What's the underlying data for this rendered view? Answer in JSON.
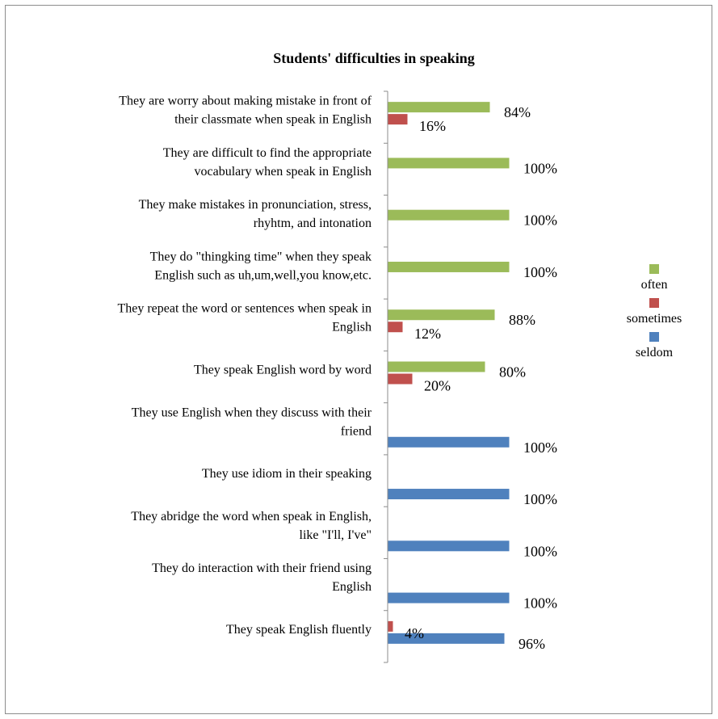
{
  "chart_data": {
    "type": "bar",
    "orientation": "horizontal",
    "title": "Students' difficulties in speaking",
    "categories": [
      [
        "They are worry about making mistake in front of",
        "their classmate when speak in English"
      ],
      [
        "They are difficult to find the appropriate",
        "vocabulary when speak in English"
      ],
      [
        "They make mistakes in pronunciation, stress,",
        "rhyhtm, and intonation"
      ],
      [
        "They do \"thingking time\" when they speak",
        "English such as uh,um,well,you know,etc."
      ],
      [
        "They repeat the word or sentences when speak in",
        "English"
      ],
      [
        "They speak English word by word"
      ],
      [
        "They use English when they discuss with their",
        "friend"
      ],
      [
        "They use idiom in their speaking"
      ],
      [
        "They abridge the word when speak in English,",
        "like \"I'll, I've\""
      ],
      [
        "They do interaction with their friend using",
        "English"
      ],
      [
        "They speak English fluently"
      ]
    ],
    "series": [
      {
        "name": "often",
        "color": "#9BBB59",
        "values": [
          84,
          100,
          100,
          100,
          88,
          80,
          null,
          null,
          null,
          null,
          null
        ],
        "labels": [
          "84%",
          "100%",
          "100%",
          "100%",
          "88%",
          "80%",
          "",
          "",
          "",
          "",
          ""
        ]
      },
      {
        "name": "sometimes",
        "color": "#C0504D",
        "values": [
          16,
          null,
          null,
          null,
          12,
          20,
          null,
          null,
          null,
          null,
          4
        ],
        "labels": [
          "16%",
          "",
          "",
          "",
          "12%",
          "20%",
          "",
          "",
          "",
          "",
          "4%"
        ]
      },
      {
        "name": "seldom",
        "color": "#4F81BD",
        "values": [
          null,
          null,
          null,
          null,
          null,
          null,
          100,
          100,
          100,
          100,
          96
        ],
        "labels": [
          "",
          "",
          "",
          "",
          "",
          "",
          "100%",
          "100%",
          "100%",
          "100%",
          "96%"
        ]
      }
    ],
    "xlim": [
      0,
      100
    ],
    "legend": {
      "position": "right",
      "entries": [
        "often",
        "sometimes",
        "seldom"
      ]
    },
    "grid": false
  }
}
